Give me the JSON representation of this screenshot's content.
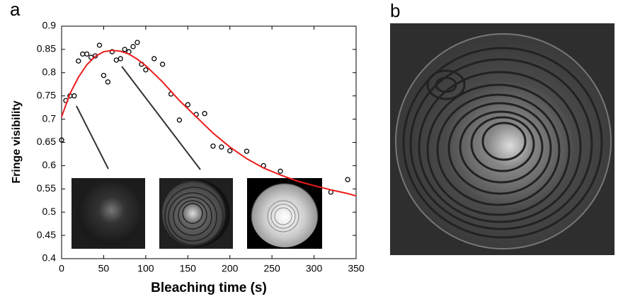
{
  "panel_labels": [
    "a",
    "b"
  ],
  "chart_data": {
    "type": "scatter",
    "xlabel": "Bleaching time (s)",
    "ylabel": "Fringe visibility",
    "xlim": [
      0,
      350
    ],
    "ylim": [
      0.4,
      0.9
    ],
    "xticks": [
      0,
      50,
      100,
      150,
      200,
      250,
      300,
      350
    ],
    "yticks": [
      0.4,
      0.45,
      0.5,
      0.55,
      0.6,
      0.65,
      0.7,
      0.75,
      0.8,
      0.85,
      0.9
    ],
    "series": [
      {
        "type": "scatter",
        "color": "#000000",
        "x": [
          0,
          5,
          10,
          15,
          20,
          25,
          30,
          35,
          40,
          45,
          50,
          55,
          60,
          65,
          70,
          75,
          80,
          85,
          90,
          95,
          100,
          110,
          120,
          130,
          140,
          150,
          160,
          170,
          180,
          190,
          200,
          220,
          240,
          260,
          320,
          340
        ],
        "values": [
          0.655,
          0.74,
          0.75,
          0.75,
          0.825,
          0.84,
          0.84,
          0.833,
          0.836,
          0.859,
          0.794,
          0.78,
          0.845,
          0.827,
          0.83,
          0.85,
          0.845,
          0.856,
          0.865,
          0.818,
          0.806,
          0.83,
          0.818,
          0.754,
          0.698,
          0.731,
          0.71,
          0.712,
          0.642,
          0.64,
          0.632,
          0.631,
          0.6,
          0.588,
          0.543,
          0.57
        ]
      },
      {
        "type": "line",
        "color": "#ee1c1c",
        "x": [
          0,
          10,
          20,
          30,
          40,
          50,
          60,
          70,
          80,
          90,
          100,
          120,
          140,
          160,
          180,
          200,
          220,
          240,
          260,
          280,
          300,
          320,
          340,
          350
        ],
        "values": [
          0.705,
          0.755,
          0.79,
          0.817,
          0.835,
          0.845,
          0.848,
          0.846,
          0.84,
          0.829,
          0.815,
          0.78,
          0.74,
          0.705,
          0.67,
          0.64,
          0.615,
          0.595,
          0.58,
          0.567,
          0.557,
          0.548,
          0.54,
          0.535
        ]
      }
    ]
  }
}
